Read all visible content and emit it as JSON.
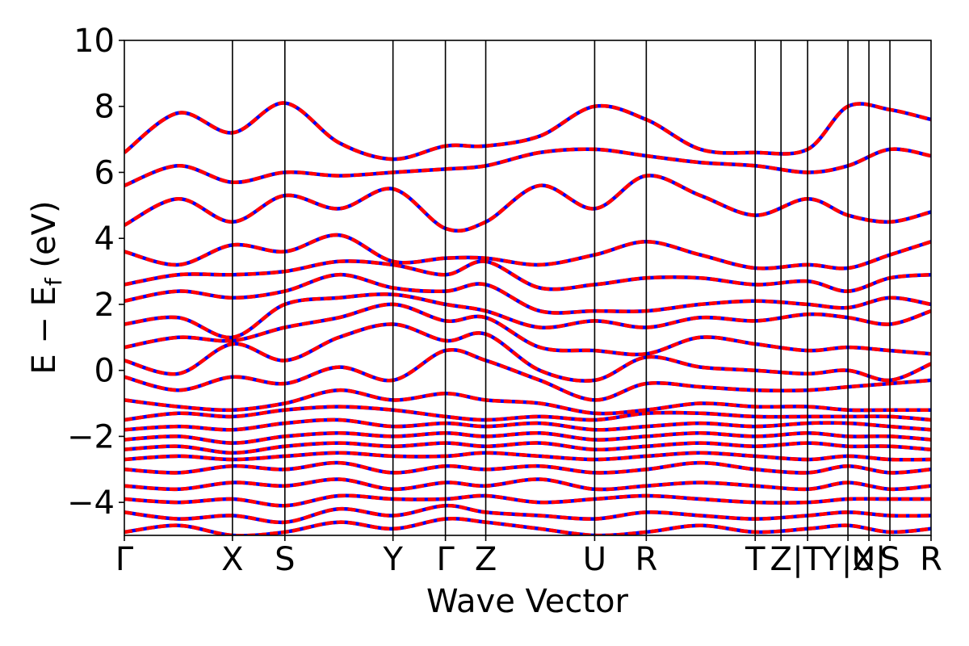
{
  "chart_data": {
    "type": "line",
    "xlabel": "Wave Vector",
    "ylabel": {
      "main": "E − E",
      "sub": "f",
      "unit": " (eV)"
    },
    "ylim": [
      -5,
      10
    ],
    "yticks": [
      -4,
      -2,
      0,
      2,
      4,
      6,
      8,
      10
    ],
    "xlim": [
      0,
      100
    ],
    "kpoints": [
      {
        "label": "Γ",
        "x": 0
      },
      {
        "label": "X",
        "x": 13.4
      },
      {
        "label": "S",
        "x": 19.9
      },
      {
        "label": "Y",
        "x": 33.3
      },
      {
        "label": "Γ",
        "x": 39.8
      },
      {
        "label": "Z",
        "x": 44.8
      },
      {
        "label": "U",
        "x": 58.3
      },
      {
        "label": "R",
        "x": 64.7
      },
      {
        "label": "T",
        "x": 78.2
      },
      {
        "label": "Z",
        "x": 81.4
      },
      {
        "label": "|T",
        "x": 84.7
      },
      {
        "label": "Y|X",
        "x": 89.7
      },
      {
        "label": "U|",
        "x": 92.3
      },
      {
        "label": "S",
        "x": 94.9
      },
      {
        "label": "R",
        "x": 100
      }
    ],
    "series_colors": {
      "primary": "#ff0000",
      "overlay": "#0000ff"
    },
    "series": [
      {
        "x": [
          0,
          6.7,
          13.4,
          19.9,
          26.6,
          33.3,
          39.8,
          44.8,
          51.5,
          58.3,
          64.7,
          71.4,
          78.2,
          84.7,
          89.7,
          94.9,
          100
        ],
        "values": [
          -4.9,
          -4.7,
          -5.0,
          -4.9,
          -4.6,
          -4.8,
          -4.5,
          -4.6,
          -4.8,
          -5.0,
          -4.9,
          -4.7,
          -4.9,
          -4.8,
          -4.7,
          -4.9,
          -4.8
        ]
      },
      {
        "x": [
          0,
          6.7,
          13.4,
          19.9,
          26.6,
          33.3,
          39.8,
          44.8,
          51.5,
          58.3,
          64.7,
          71.4,
          78.2,
          84.7,
          89.7,
          94.9,
          100
        ],
        "values": [
          -4.3,
          -4.5,
          -4.4,
          -4.6,
          -4.2,
          -4.4,
          -4.1,
          -4.3,
          -4.4,
          -4.5,
          -4.3,
          -4.4,
          -4.5,
          -4.4,
          -4.3,
          -4.4,
          -4.4
        ]
      },
      {
        "x": [
          0,
          6.7,
          13.4,
          19.9,
          26.6,
          33.3,
          39.8,
          44.8,
          51.5,
          58.3,
          64.7,
          71.4,
          78.2,
          84.7,
          89.7,
          94.9,
          100
        ],
        "values": [
          -3.9,
          -4.0,
          -3.9,
          -4.1,
          -3.8,
          -3.9,
          -3.9,
          -3.8,
          -4.0,
          -3.9,
          -3.8,
          -3.9,
          -4.0,
          -4.0,
          -3.9,
          -3.9,
          -3.9
        ]
      },
      {
        "x": [
          0,
          6.7,
          13.4,
          19.9,
          26.6,
          33.3,
          39.8,
          44.8,
          51.5,
          58.3,
          64.7,
          71.4,
          78.2,
          84.7,
          89.7,
          94.9,
          100
        ],
        "values": [
          -3.5,
          -3.6,
          -3.4,
          -3.5,
          -3.3,
          -3.6,
          -3.4,
          -3.5,
          -3.3,
          -3.6,
          -3.5,
          -3.4,
          -3.5,
          -3.6,
          -3.4,
          -3.6,
          -3.5
        ]
      },
      {
        "x": [
          0,
          6.7,
          13.4,
          19.9,
          26.6,
          33.3,
          39.8,
          44.8,
          51.5,
          58.3,
          64.7,
          71.4,
          78.2,
          84.7,
          89.7,
          94.9,
          100
        ],
        "values": [
          -3.0,
          -3.1,
          -2.9,
          -3.0,
          -2.8,
          -3.1,
          -2.9,
          -3.0,
          -2.9,
          -3.1,
          -3.0,
          -2.8,
          -3.0,
          -3.1,
          -2.9,
          -3.1,
          -3.0
        ]
      },
      {
        "x": [
          0,
          6.7,
          13.4,
          19.9,
          26.6,
          33.3,
          39.8,
          44.8,
          51.5,
          58.3,
          64.7,
          71.4,
          78.2,
          84.7,
          89.7,
          94.9,
          100
        ],
        "values": [
          -2.7,
          -2.6,
          -2.7,
          -2.6,
          -2.5,
          -2.6,
          -2.6,
          -2.5,
          -2.6,
          -2.7,
          -2.6,
          -2.5,
          -2.6,
          -2.7,
          -2.6,
          -2.7,
          -2.7
        ]
      },
      {
        "x": [
          0,
          6.7,
          13.4,
          19.9,
          26.6,
          33.3,
          39.8,
          44.8,
          51.5,
          58.3,
          64.7,
          71.4,
          78.2,
          84.7,
          89.7,
          94.9,
          100
        ],
        "values": [
          -2.4,
          -2.3,
          -2.5,
          -2.3,
          -2.2,
          -2.3,
          -2.2,
          -2.3,
          -2.2,
          -2.4,
          -2.3,
          -2.2,
          -2.3,
          -2.2,
          -2.3,
          -2.3,
          -2.4
        ]
      },
      {
        "x": [
          0,
          6.7,
          13.4,
          19.9,
          26.6,
          33.3,
          39.8,
          44.8,
          51.5,
          58.3,
          64.7,
          71.4,
          78.2,
          84.7,
          89.7,
          94.9,
          100
        ],
        "values": [
          -2.1,
          -2.0,
          -2.2,
          -2.0,
          -1.9,
          -2.0,
          -1.9,
          -2.0,
          -1.9,
          -2.1,
          -2.0,
          -1.9,
          -2.0,
          -1.9,
          -2.0,
          -2.0,
          -2.1
        ]
      },
      {
        "x": [
          0,
          6.7,
          13.4,
          19.9,
          26.6,
          33.3,
          39.8,
          44.8,
          51.5,
          58.3,
          64.7,
          71.4,
          78.2,
          84.7,
          89.7,
          94.9,
          100
        ],
        "values": [
          -1.8,
          -1.7,
          -1.8,
          -1.6,
          -1.5,
          -1.7,
          -1.6,
          -1.7,
          -1.6,
          -1.8,
          -1.7,
          -1.6,
          -1.7,
          -1.6,
          -1.6,
          -1.7,
          -1.8
        ]
      },
      {
        "x": [
          0,
          6.7,
          13.4,
          19.9,
          26.6,
          33.3,
          39.8,
          44.8,
          51.5,
          58.3,
          64.7,
          71.4,
          78.2,
          84.7,
          89.7,
          94.9,
          100
        ],
        "values": [
          -1.5,
          -1.3,
          -1.4,
          -1.2,
          -1.1,
          -1.2,
          -1.4,
          -1.5,
          -1.4,
          -1.5,
          -1.3,
          -1.3,
          -1.4,
          -1.4,
          -1.4,
          -1.4,
          -1.5
        ]
      },
      {
        "x": [
          0,
          6.7,
          13.4,
          19.9,
          26.6,
          33.3,
          39.8,
          44.8,
          51.5,
          58.3,
          64.7,
          71.4,
          78.2,
          84.7,
          89.7,
          94.9,
          100
        ],
        "values": [
          -0.9,
          -1.1,
          -1.2,
          -1.0,
          -0.6,
          -0.9,
          -0.7,
          -0.9,
          -1.0,
          -1.3,
          -1.2,
          -1.0,
          -1.1,
          -1.1,
          -1.2,
          -1.2,
          -1.2
        ]
      },
      {
        "x": [
          0,
          6.7,
          13.4,
          19.9,
          26.6,
          33.3,
          39.8,
          44.8,
          51.5,
          58.3,
          64.7,
          71.4,
          78.2,
          84.7,
          89.7,
          94.9,
          100
        ],
        "values": [
          -0.2,
          -0.6,
          -0.2,
          -0.4,
          0.1,
          -0.3,
          0.6,
          0.3,
          -0.3,
          -0.9,
          -0.4,
          -0.5,
          -0.6,
          -0.6,
          -0.5,
          -0.4,
          -0.3
        ]
      },
      {
        "x": [
          0,
          6.7,
          13.4,
          19.9,
          26.6,
          33.3,
          39.8,
          44.8,
          51.5,
          58.3,
          64.7,
          71.4,
          78.2,
          84.7,
          89.7,
          94.9,
          100
        ],
        "values": [
          0.3,
          -0.1,
          0.8,
          0.3,
          1.0,
          1.4,
          0.9,
          1.1,
          0.0,
          -0.3,
          0.4,
          0.1,
          0.0,
          -0.1,
          0.0,
          -0.3,
          0.2
        ]
      },
      {
        "x": [
          0,
          6.7,
          13.4,
          19.9,
          26.6,
          33.3,
          39.8,
          44.8,
          51.5,
          58.3,
          64.7,
          71.4,
          78.2,
          84.7,
          89.7,
          94.9,
          100
        ],
        "values": [
          0.7,
          1.0,
          0.9,
          1.3,
          1.6,
          2.0,
          1.5,
          1.6,
          0.7,
          0.6,
          0.5,
          1.0,
          0.8,
          0.6,
          0.7,
          0.6,
          0.5
        ]
      },
      {
        "x": [
          0,
          6.7,
          13.4,
          19.9,
          26.6,
          33.3,
          39.8,
          44.8,
          51.5,
          58.3,
          64.7,
          71.4,
          78.2,
          84.7,
          89.7,
          94.9,
          100
        ],
        "values": [
          1.4,
          1.6,
          1.0,
          2.0,
          2.2,
          2.3,
          2.0,
          1.8,
          1.3,
          1.5,
          1.3,
          1.6,
          1.5,
          1.7,
          1.6,
          1.4,
          1.8
        ]
      },
      {
        "x": [
          0,
          6.7,
          13.4,
          19.9,
          26.6,
          33.3,
          39.8,
          44.8,
          51.5,
          58.3,
          64.7,
          71.4,
          78.2,
          84.7,
          89.7,
          94.9,
          100
        ],
        "values": [
          2.1,
          2.4,
          2.2,
          2.4,
          2.9,
          2.5,
          2.4,
          2.6,
          1.8,
          1.8,
          1.8,
          2.0,
          2.1,
          2.0,
          1.9,
          2.2,
          2.0
        ]
      },
      {
        "x": [
          0,
          6.7,
          13.4,
          19.9,
          26.6,
          33.3,
          39.8,
          44.8,
          51.5,
          58.3,
          64.7,
          71.4,
          78.2,
          84.7,
          89.7,
          94.9,
          100
        ],
        "values": [
          2.6,
          2.9,
          2.9,
          3.0,
          3.3,
          3.2,
          2.9,
          3.3,
          2.5,
          2.6,
          2.8,
          2.8,
          2.6,
          2.7,
          2.4,
          2.8,
          2.9
        ]
      },
      {
        "x": [
          0,
          6.7,
          13.4,
          19.9,
          26.6,
          33.3,
          39.8,
          44.8,
          51.5,
          58.3,
          64.7,
          71.4,
          78.2,
          84.7,
          89.7,
          94.9,
          100
        ],
        "values": [
          3.6,
          3.2,
          3.8,
          3.6,
          4.1,
          3.3,
          3.4,
          3.4,
          3.2,
          3.5,
          3.9,
          3.5,
          3.1,
          3.2,
          3.1,
          3.5,
          3.9
        ]
      },
      {
        "x": [
          0,
          6.7,
          13.4,
          19.9,
          26.6,
          33.3,
          39.8,
          44.8,
          51.5,
          58.3,
          64.7,
          71.4,
          78.2,
          84.7,
          89.7,
          94.9,
          100
        ],
        "values": [
          4.4,
          5.2,
          4.5,
          5.3,
          4.9,
          5.5,
          4.3,
          4.5,
          5.6,
          4.9,
          5.9,
          5.3,
          4.7,
          5.2,
          4.7,
          4.5,
          4.8
        ]
      },
      {
        "x": [
          0,
          6.7,
          13.4,
          19.9,
          26.6,
          33.3,
          39.8,
          44.8,
          51.5,
          58.3,
          64.7,
          71.4,
          78.2,
          84.7,
          89.7,
          94.9,
          100
        ],
        "values": [
          5.6,
          6.2,
          5.7,
          6.0,
          5.9,
          6.0,
          6.1,
          6.2,
          6.6,
          6.7,
          6.5,
          6.3,
          6.2,
          6.0,
          6.2,
          6.7,
          6.5
        ]
      },
      {
        "x": [
          0,
          6.7,
          13.4,
          19.9,
          26.6,
          33.3,
          39.8,
          44.8,
          51.5,
          58.3,
          64.7,
          71.4,
          78.2,
          84.7,
          89.7,
          94.9,
          100
        ],
        "values": [
          6.6,
          7.8,
          7.2,
          8.1,
          6.9,
          6.4,
          6.8,
          6.8,
          7.1,
          8.0,
          7.6,
          6.7,
          6.6,
          6.7,
          8.0,
          7.9,
          7.6
        ]
      }
    ]
  }
}
